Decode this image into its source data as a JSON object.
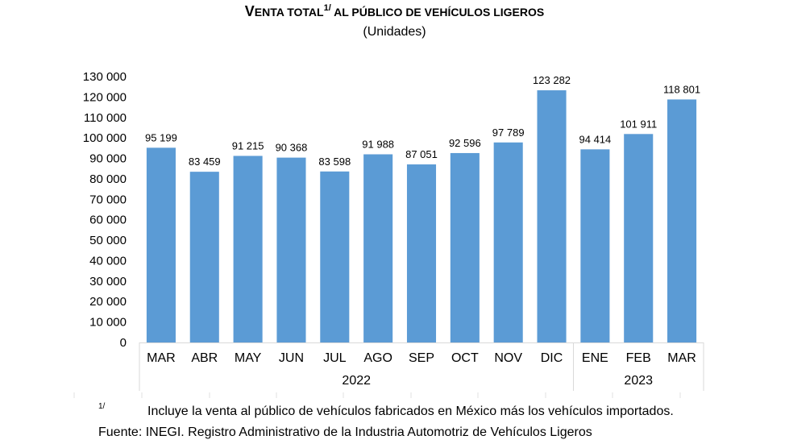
{
  "title": {
    "first_letter": "V",
    "text_small": "ENTA TOTAL",
    "superscript": "1/",
    "text_rest": " AL PÚBLICO DE VEHÍCULOS LIGEROS"
  },
  "subtitle": "(Unidades)",
  "chart_data": {
    "type": "bar",
    "title": "VENTA TOTAL AL PÚBLICO DE VEHÍCULOS LIGEROS",
    "subtitle": "(Unidades)",
    "categories": [
      "MAR",
      "ABR",
      "MAY",
      "JUN",
      "JUL",
      "AGO",
      "SEP",
      "OCT",
      "NOV",
      "DIC",
      "ENE",
      "FEB",
      "MAR"
    ],
    "values": [
      95199,
      83459,
      91215,
      90368,
      83598,
      91988,
      87051,
      92596,
      97789,
      123282,
      94414,
      101911,
      118801
    ],
    "data_labels": [
      "95 199",
      "83 459",
      "91 215",
      "90 368",
      "83 598",
      "91 988",
      "87 051",
      "92 596",
      "97 789",
      "123 282",
      "94 414",
      "101 911",
      "118 801"
    ],
    "groups": [
      {
        "label": "2022",
        "count": 10
      },
      {
        "label": "2023",
        "count": 3
      }
    ],
    "ylim": [
      0,
      130000
    ],
    "y_ticks": [
      0,
      10000,
      20000,
      30000,
      40000,
      50000,
      60000,
      70000,
      80000,
      90000,
      100000,
      110000,
      120000,
      130000
    ],
    "y_tick_labels": [
      "0",
      "10 000",
      "20 000",
      "30 000",
      "40 000",
      "50 000",
      "60 000",
      "70 000",
      "80 000",
      "90 000",
      "100 000",
      "110 000",
      "120 000",
      "130 000"
    ],
    "xlabel": "",
    "ylabel": "",
    "grid": false,
    "legend": "none",
    "bar_color": "#5b9bd5"
  },
  "footnote": {
    "mark": "1/",
    "text": "Incluye la venta al público de vehículos fabricados en México más los vehículos importados."
  },
  "source": "Fuente: INEGI. Registro Administrativo de la Industria Automotriz de Vehículos Ligeros"
}
